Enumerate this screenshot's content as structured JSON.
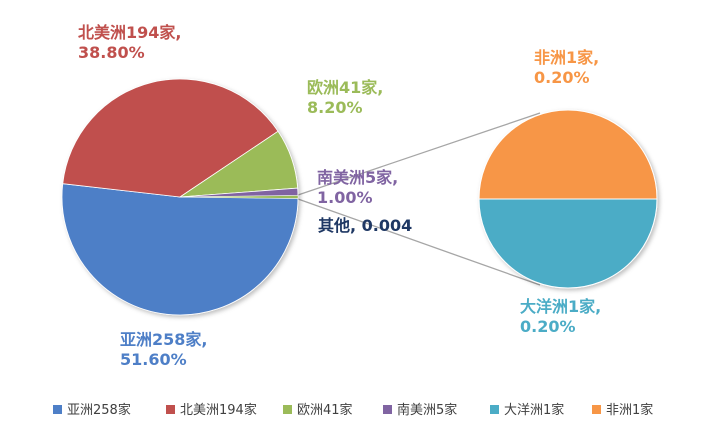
{
  "chart_data": {
    "type": "pie",
    "subtype": "pie-of-pie",
    "slices": [
      {
        "name": "亚洲258家",
        "value": 51.6,
        "pct_label": "51.60%",
        "color": "#4e7fc7",
        "text_color": "#4e7fc7"
      },
      {
        "name": "北美洲194家",
        "value": 38.8,
        "pct_label": "38.80%",
        "color": "#c0504d",
        "text_color": "#c0504d"
      },
      {
        "name": "欧洲41家",
        "value": 8.2,
        "pct_label": "8.20%",
        "color": "#9bbb59",
        "text_color": "#9bbb59"
      },
      {
        "name": "南美洲5家",
        "value": 1.0,
        "pct_label": "1.00%",
        "color": "#8064a2",
        "text_color": "#8064a2"
      }
    ],
    "other": {
      "label": "其他, 0.004",
      "value": 0.4,
      "color": "#9bbb59",
      "text_color": "#1f3864"
    },
    "secondary_slices": [
      {
        "name": "非洲1家",
        "value": 0.2,
        "pct_label": "0.20%",
        "color": "#f79646",
        "text_color": "#f79646"
      },
      {
        "name": "大洋洲1家",
        "value": 0.2,
        "pct_label": "0.20%",
        "color": "#4bacc6",
        "text_color": "#4bacc6"
      }
    ],
    "legend": {
      "placement": "bottom",
      "entries": [
        {
          "name": "亚洲258家",
          "color": "#4e7fc7"
        },
        {
          "name": "北美洲194家",
          "color": "#c0504d"
        },
        {
          "name": "欧洲41家",
          "color": "#9bbb59"
        },
        {
          "name": "南美洲5家",
          "color": "#8064a2"
        },
        {
          "name": "大洋洲1家",
          "color": "#4bacc6"
        },
        {
          "name": "非洲1家",
          "color": "#f79646"
        }
      ]
    }
  }
}
